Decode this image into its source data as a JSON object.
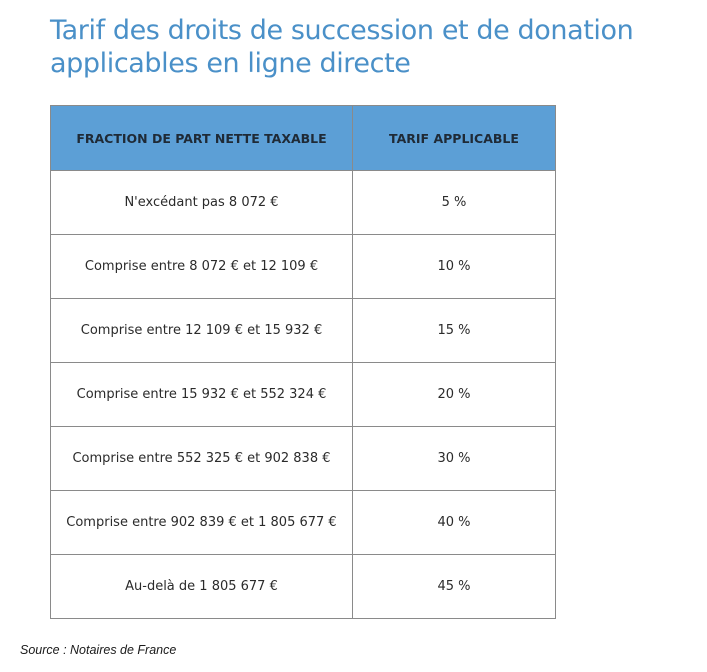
{
  "title": "Tarif des droits de succession et de donation applicables en ligne directe",
  "table": {
    "headers": [
      "FRACTION DE PART NETTE TAXABLE",
      "TARIF APPLICABLE"
    ],
    "rows": [
      [
        "N'excédant pas 8 072 €",
        "5 %"
      ],
      [
        "Comprise entre 8 072 € et 12 109 €",
        "10 %"
      ],
      [
        "Comprise entre 12 109 € et 15 932 €",
        "15 %"
      ],
      [
        "Comprise entre 15 932 € et 552 324 €",
        "20 %"
      ],
      [
        "Comprise entre 552 325 € et 902 838 €",
        "30 %"
      ],
      [
        "Comprise entre 902 839 € et 1 805 677 €",
        "40 %"
      ],
      [
        "Au-delà de 1 805 677 €",
        "45 %"
      ]
    ]
  },
  "source": "Source : Notaires de France"
}
